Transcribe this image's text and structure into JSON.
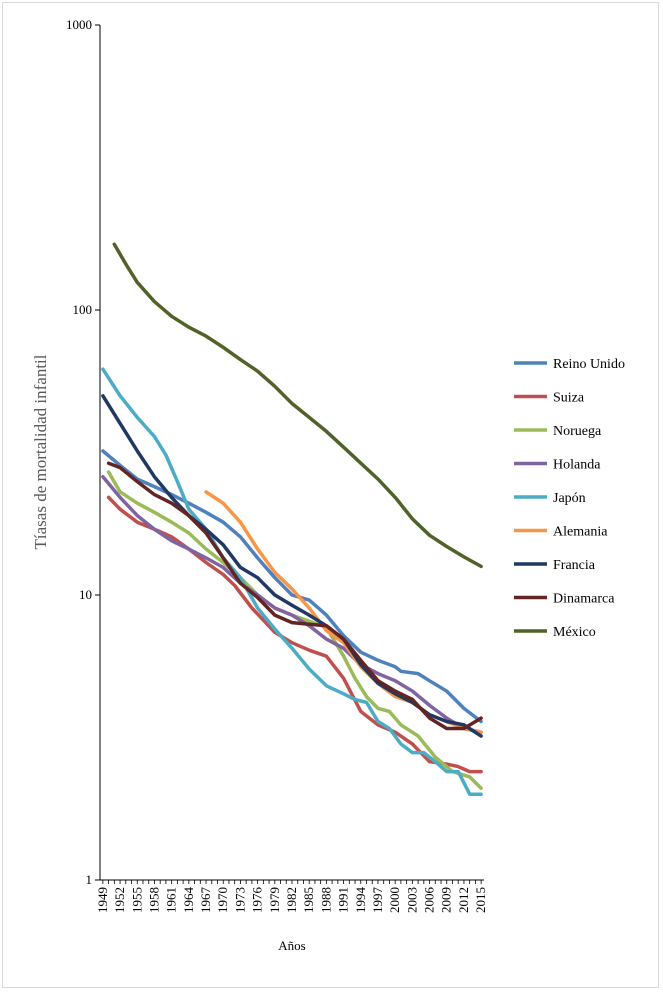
{
  "chart_data": {
    "type": "line",
    "yscale": "log",
    "ylim": [
      1,
      1000
    ],
    "xlim": [
      1949,
      2015
    ],
    "xlabel": "Años",
    "ylabel": "Tíasas de mortalidad infantil",
    "ytick_labels": [
      "1",
      "10",
      "100",
      "1000"
    ],
    "xtick_labels": [
      "1949",
      "1952",
      "1955",
      "1958",
      "1961",
      "1964",
      "1967",
      "1970",
      "1973",
      "1976",
      "1979",
      "1982",
      "1985",
      "1988",
      "1991",
      "1994",
      "1997",
      "2000",
      "2003",
      "2006",
      "2009",
      "2012",
      "2015"
    ],
    "legend_position": "right",
    "series": [
      {
        "name": "Reino Unido",
        "color": "#4f81bd",
        "points": [
          [
            1949,
            32
          ],
          [
            1952,
            28.5
          ],
          [
            1955,
            25.5
          ],
          [
            1958,
            24
          ],
          [
            1961,
            22.5
          ],
          [
            1964,
            21
          ],
          [
            1967,
            19.5
          ],
          [
            1970,
            18
          ],
          [
            1973,
            16
          ],
          [
            1976,
            13.5
          ],
          [
            1979,
            11.5
          ],
          [
            1982,
            10
          ],
          [
            1985,
            9.6
          ],
          [
            1988,
            8.5
          ],
          [
            1991,
            7.2
          ],
          [
            1994,
            6.3
          ],
          [
            1997,
            5.9
          ],
          [
            2000,
            5.6
          ],
          [
            2001,
            5.4
          ],
          [
            2004,
            5.3
          ],
          [
            2006,
            5
          ],
          [
            2009,
            4.6
          ],
          [
            2012,
            4
          ],
          [
            2015,
            3.6
          ]
        ]
      },
      {
        "name": "Suiza",
        "color": "#c0504d",
        "points": [
          [
            1950,
            22
          ],
          [
            1952,
            20
          ],
          [
            1955,
            18
          ],
          [
            1958,
            17
          ],
          [
            1961,
            16
          ],
          [
            1964,
            14.5
          ],
          [
            1967,
            13
          ],
          [
            1970,
            11.8
          ],
          [
            1972,
            10.8
          ],
          [
            1975,
            9
          ],
          [
            1979,
            7.4
          ],
          [
            1982,
            6.8
          ],
          [
            1985,
            6.4
          ],
          [
            1988,
            6.1
          ],
          [
            1991,
            5.1
          ],
          [
            1994,
            3.9
          ],
          [
            1997,
            3.5
          ],
          [
            2000,
            3.3
          ],
          [
            2003,
            3
          ],
          [
            2006,
            2.6
          ],
          [
            2009,
            2.55
          ],
          [
            2011,
            2.5
          ],
          [
            2013,
            2.4
          ],
          [
            2015,
            2.4
          ]
        ]
      },
      {
        "name": "Noruega",
        "color": "#9bbb59",
        "points": [
          [
            1950,
            27
          ],
          [
            1952,
            23
          ],
          [
            1955,
            21
          ],
          [
            1958,
            19.5
          ],
          [
            1961,
            18
          ],
          [
            1964,
            16.5
          ],
          [
            1967,
            14.5
          ],
          [
            1970,
            13
          ],
          [
            1973,
            11.5
          ],
          [
            1976,
            10
          ],
          [
            1979,
            9
          ],
          [
            1982,
            8.5
          ],
          [
            1985,
            8.1
          ],
          [
            1988,
            7.7
          ],
          [
            1991,
            6.1
          ],
          [
            1993,
            5.1
          ],
          [
            1995,
            4.4
          ],
          [
            1997,
            4
          ],
          [
            1999,
            3.9
          ],
          [
            2001,
            3.5
          ],
          [
            2004,
            3.2
          ],
          [
            2007,
            2.7
          ],
          [
            2010,
            2.4
          ],
          [
            2013,
            2.3
          ],
          [
            2015,
            2.1
          ]
        ]
      },
      {
        "name": "Holanda",
        "color": "#8064a2",
        "points": [
          [
            1949,
            26
          ],
          [
            1952,
            22
          ],
          [
            1955,
            19
          ],
          [
            1958,
            17
          ],
          [
            1961,
            15.5
          ],
          [
            1964,
            14.5
          ],
          [
            1967,
            13.5
          ],
          [
            1970,
            12.5
          ],
          [
            1973,
            11
          ],
          [
            1976,
            10
          ],
          [
            1979,
            9
          ],
          [
            1982,
            8.5
          ],
          [
            1985,
            7.8
          ],
          [
            1988,
            7
          ],
          [
            1991,
            6.5
          ],
          [
            1994,
            5.7
          ],
          [
            1997,
            5.3
          ],
          [
            2000,
            5
          ],
          [
            2003,
            4.6
          ],
          [
            2006,
            4.1
          ],
          [
            2009,
            3.7
          ],
          [
            2012,
            3.4
          ],
          [
            2015,
            3.3
          ]
        ]
      },
      {
        "name": "Japón",
        "color": "#4bacc6",
        "points": [
          [
            1949,
            62
          ],
          [
            1952,
            50
          ],
          [
            1955,
            42
          ],
          [
            1958,
            36
          ],
          [
            1960,
            31
          ],
          [
            1962,
            25
          ],
          [
            1964,
            20
          ],
          [
            1967,
            17
          ],
          [
            1970,
            13.5
          ],
          [
            1973,
            11.5
          ],
          [
            1976,
            9
          ],
          [
            1979,
            7.6
          ],
          [
            1982,
            6.5
          ],
          [
            1985,
            5.5
          ],
          [
            1988,
            4.8
          ],
          [
            1991,
            4.5
          ],
          [
            1993,
            4.3
          ],
          [
            1995,
            4.2
          ],
          [
            1997,
            3.6
          ],
          [
            1999,
            3.4
          ],
          [
            2001,
            3
          ],
          [
            2003,
            2.8
          ],
          [
            2005,
            2.8
          ],
          [
            2007,
            2.6
          ],
          [
            2009,
            2.4
          ],
          [
            2011,
            2.4
          ],
          [
            2013,
            2
          ],
          [
            2015,
            2
          ]
        ]
      },
      {
        "name": "Alemania",
        "color": "#f79646",
        "points": [
          [
            1967,
            23
          ],
          [
            1970,
            21
          ],
          [
            1973,
            18
          ],
          [
            1976,
            14.5
          ],
          [
            1979,
            12
          ],
          [
            1982,
            10.5
          ],
          [
            1985,
            9
          ],
          [
            1988,
            7.5
          ],
          [
            1991,
            6.8
          ],
          [
            1994,
            5.6
          ],
          [
            1997,
            4.9
          ],
          [
            2000,
            4.4
          ],
          [
            2003,
            4.2
          ],
          [
            2006,
            3.8
          ],
          [
            2009,
            3.6
          ],
          [
            2012,
            3.4
          ],
          [
            2015,
            3.3
          ]
        ]
      },
      {
        "name": "Francia",
        "color": "#1f3864",
        "points": [
          [
            1949,
            50
          ],
          [
            1952,
            40
          ],
          [
            1955,
            32
          ],
          [
            1958,
            26
          ],
          [
            1961,
            22
          ],
          [
            1964,
            19
          ],
          [
            1967,
            17
          ],
          [
            1970,
            15
          ],
          [
            1973,
            12.5
          ],
          [
            1976,
            11.5
          ],
          [
            1979,
            10
          ],
          [
            1982,
            9.2
          ],
          [
            1985,
            8.5
          ],
          [
            1988,
            7.8
          ],
          [
            1991,
            7
          ],
          [
            1994,
            5.7
          ],
          [
            1997,
            4.9
          ],
          [
            2000,
            4.5
          ],
          [
            2003,
            4.2
          ],
          [
            2006,
            3.8
          ],
          [
            2009,
            3.6
          ],
          [
            2012,
            3.5
          ],
          [
            2015,
            3.2
          ]
        ]
      },
      {
        "name": "Dinamarca",
        "color": "#632523",
        "points": [
          [
            1950,
            29
          ],
          [
            1952,
            28
          ],
          [
            1955,
            25
          ],
          [
            1958,
            22.5
          ],
          [
            1961,
            21
          ],
          [
            1964,
            19
          ],
          [
            1967,
            16.5
          ],
          [
            1970,
            13.5
          ],
          [
            1973,
            11
          ],
          [
            1976,
            9.8
          ],
          [
            1979,
            8.5
          ],
          [
            1982,
            8
          ],
          [
            1985,
            7.9
          ],
          [
            1988,
            7.8
          ],
          [
            1991,
            7
          ],
          [
            1994,
            5.9
          ],
          [
            1997,
            5
          ],
          [
            2000,
            4.6
          ],
          [
            2003,
            4.3
          ],
          [
            2006,
            3.7
          ],
          [
            2009,
            3.4
          ],
          [
            2012,
            3.4
          ],
          [
            2015,
            3.7
          ]
        ]
      },
      {
        "name": "México",
        "color": "#4f6228",
        "points": [
          [
            1951,
            170
          ],
          [
            1953,
            145
          ],
          [
            1955,
            125
          ],
          [
            1958,
            107
          ],
          [
            1961,
            95
          ],
          [
            1964,
            87
          ],
          [
            1967,
            81
          ],
          [
            1970,
            74
          ],
          [
            1973,
            67
          ],
          [
            1976,
            61
          ],
          [
            1979,
            54
          ],
          [
            1982,
            47
          ],
          [
            1985,
            42
          ],
          [
            1988,
            37.5
          ],
          [
            1991,
            33
          ],
          [
            1994,
            29
          ],
          [
            1997,
            25.5
          ],
          [
            2000,
            22
          ],
          [
            2003,
            18.5
          ],
          [
            2006,
            16.2
          ],
          [
            2009,
            14.8
          ],
          [
            2012,
            13.6
          ],
          [
            2015,
            12.6
          ]
        ]
      }
    ]
  }
}
